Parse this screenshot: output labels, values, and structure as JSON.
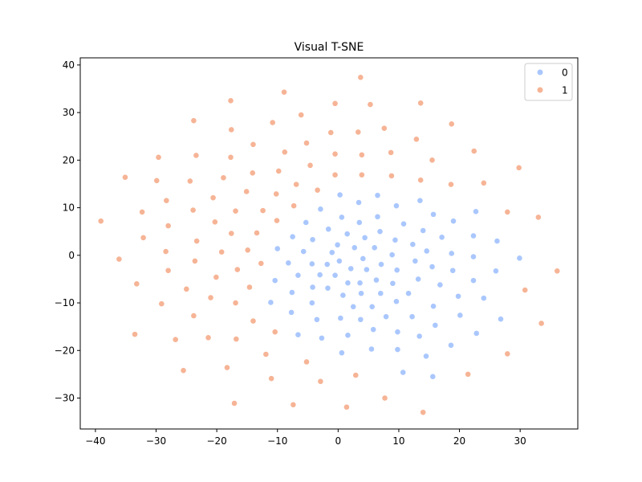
{
  "chart_data": {
    "type": "scatter",
    "title": "Visual T-SNE",
    "xlabel": "",
    "ylabel": "",
    "xlim": [
      -42.5,
      39.5
    ],
    "ylim": [
      -36.5,
      41.5
    ],
    "xticks": [
      -40,
      -30,
      -20,
      -10,
      0,
      10,
      20,
      30
    ],
    "yticks": [
      -30,
      -20,
      -10,
      0,
      10,
      20,
      30,
      40
    ],
    "grid": false,
    "legend_position": "top-right",
    "series": [
      {
        "name": "0",
        "color": "#aac7fd",
        "points": [
          [
            0.3,
            12.7
          ],
          [
            6.5,
            12.6
          ],
          [
            3.4,
            11.1
          ],
          [
            13.5,
            11.5
          ],
          [
            -2.9,
            9.7
          ],
          [
            9.6,
            10.4
          ],
          [
            15.7,
            8.6
          ],
          [
            0.6,
            8.0
          ],
          [
            6.5,
            8.1
          ],
          [
            19.0,
            7.2
          ],
          [
            -5.3,
            6.9
          ],
          [
            3.5,
            6.9
          ],
          [
            10.8,
            6.6
          ],
          [
            22.7,
            9.2
          ],
          [
            -1.6,
            5.5
          ],
          [
            6.9,
            5.0
          ],
          [
            14.0,
            5.2
          ],
          [
            -7.5,
            3.9
          ],
          [
            1.5,
            4.5
          ],
          [
            4.4,
            3.7
          ],
          [
            17.1,
            3.8
          ],
          [
            22.3,
            4.1
          ],
          [
            26.2,
            3.0
          ],
          [
            -10.0,
            1.4
          ],
          [
            -4.2,
            3.3
          ],
          [
            9.4,
            3.2
          ],
          [
            12.3,
            2.3
          ],
          [
            -5.7,
            0.8
          ],
          [
            -1.0,
            0.6
          ],
          [
            -0.1,
            2.2
          ],
          [
            2.7,
            1.6
          ],
          [
            6.0,
            1.6
          ],
          [
            14.6,
            0.9
          ],
          [
            18.7,
            0.4
          ],
          [
            -8.2,
            -1.6
          ],
          [
            -4.3,
            -1.8
          ],
          [
            -1.8,
            -1.9
          ],
          [
            0.2,
            -1.2
          ],
          [
            4.1,
            -0.7
          ],
          [
            8.9,
            0.1
          ],
          [
            12.7,
            -1.2
          ],
          [
            22.3,
            -0.3
          ],
          [
            29.9,
            -0.6
          ],
          [
            -6.6,
            -4.2
          ],
          [
            -3.0,
            -4.1
          ],
          [
            -0.5,
            -4.2
          ],
          [
            2.1,
            -2.8
          ],
          [
            4.7,
            -3.0
          ],
          [
            7.1,
            -1.9
          ],
          [
            9.7,
            -3.1
          ],
          [
            15.5,
            -2.4
          ],
          [
            18.9,
            -3.2
          ],
          [
            26.0,
            -3.3
          ],
          [
            -10.4,
            -5.3
          ],
          [
            -4.2,
            -6.7
          ],
          [
            -1.7,
            -6.9
          ],
          [
            1.6,
            -5.8
          ],
          [
            3.6,
            -5.8
          ],
          [
            6.3,
            -5.2
          ],
          [
            9.0,
            -5.9
          ],
          [
            13.2,
            -5.0
          ],
          [
            16.8,
            -6.2
          ],
          [
            22.3,
            -5.3
          ],
          [
            -7.6,
            -7.8
          ],
          [
            0.8,
            -8.4
          ],
          [
            3.8,
            -8.0
          ],
          [
            7.0,
            -8.0
          ],
          [
            11.6,
            -8.0
          ],
          [
            19.8,
            -8.6
          ],
          [
            24.0,
            -9.0
          ],
          [
            -11.1,
            -9.9
          ],
          [
            -4.3,
            -10.0
          ],
          [
            2.5,
            -10.8
          ],
          [
            5.6,
            -10.8
          ],
          [
            9.6,
            -9.7
          ],
          [
            15.7,
            -10.7
          ],
          [
            -7.7,
            -12.0
          ],
          [
            -3.5,
            -13.5
          ],
          [
            0.4,
            -13.2
          ],
          [
            3.7,
            -13.5
          ],
          [
            7.9,
            -12.9
          ],
          [
            12.2,
            -12.9
          ],
          [
            20.1,
            -12.6
          ],
          [
            26.8,
            -13.4
          ],
          [
            -6.6,
            -16.7
          ],
          [
            -2.7,
            -17.4
          ],
          [
            1.6,
            -16.8
          ],
          [
            5.8,
            -15.6
          ],
          [
            9.8,
            -16.1
          ],
          [
            13.4,
            -17.0
          ],
          [
            16.0,
            -14.7
          ],
          [
            22.8,
            -16.4
          ],
          [
            0.6,
            -20.5
          ],
          [
            5.5,
            -19.7
          ],
          [
            9.8,
            -19.8
          ],
          [
            14.5,
            -21.2
          ],
          [
            18.6,
            -18.9
          ],
          [
            10.7,
            -24.6
          ],
          [
            15.6,
            -25.5
          ]
        ]
      },
      {
        "name": "1",
        "color": "#f6b496",
        "points": [
          [
            3.7,
            37.4
          ],
          [
            -8.9,
            34.3
          ],
          [
            -17.7,
            32.5
          ],
          [
            -0.5,
            31.9
          ],
          [
            5.3,
            31.7
          ],
          [
            13.6,
            32.0
          ],
          [
            -6.1,
            29.5
          ],
          [
            -23.8,
            28.3
          ],
          [
            -10.8,
            27.9
          ],
          [
            18.7,
            27.6
          ],
          [
            -17.6,
            26.4
          ],
          [
            -1.2,
            25.8
          ],
          [
            3.3,
            25.9
          ],
          [
            7.6,
            26.7
          ],
          [
            12.9,
            24.4
          ],
          [
            -5.2,
            23.6
          ],
          [
            -14.0,
            23.3
          ],
          [
            22.4,
            21.9
          ],
          [
            -29.6,
            20.6
          ],
          [
            -23.4,
            21.0
          ],
          [
            -17.7,
            20.6
          ],
          [
            -8.8,
            21.7
          ],
          [
            -0.5,
            21.3
          ],
          [
            3.9,
            21.1
          ],
          [
            8.7,
            21.6
          ],
          [
            15.5,
            20.0
          ],
          [
            29.8,
            18.4
          ],
          [
            -4.6,
            18.9
          ],
          [
            -35.1,
            16.4
          ],
          [
            -29.9,
            15.7
          ],
          [
            -24.4,
            15.6
          ],
          [
            -18.9,
            16.3
          ],
          [
            -14.1,
            17.3
          ],
          [
            -9.8,
            17.7
          ],
          [
            -0.5,
            16.9
          ],
          [
            3.9,
            16.9
          ],
          [
            8.8,
            16.7
          ],
          [
            13.6,
            15.8
          ],
          [
            18.6,
            14.9
          ],
          [
            24.0,
            15.2
          ],
          [
            -6.9,
            14.9
          ],
          [
            -3.4,
            13.7
          ],
          [
            -15.1,
            13.4
          ],
          [
            -10.2,
            12.9
          ],
          [
            -20.6,
            12.1
          ],
          [
            -28.3,
            11.5
          ],
          [
            -32.3,
            9.1
          ],
          [
            -23.9,
            9.5
          ],
          [
            -16.9,
            9.3
          ],
          [
            -12.4,
            9.4
          ],
          [
            -7.3,
            10.4
          ],
          [
            27.9,
            9.1
          ],
          [
            -39.1,
            7.2
          ],
          [
            -28.0,
            6.2
          ],
          [
            -20.3,
            7.0
          ],
          [
            -10.1,
            7.3
          ],
          [
            33.0,
            8.0
          ],
          [
            -17.6,
            4.6
          ],
          [
            -13.4,
            4.7
          ],
          [
            -32.1,
            3.7
          ],
          [
            -23.3,
            3.0
          ],
          [
            -28.4,
            0.8
          ],
          [
            -19.2,
            0.7
          ],
          [
            -14.9,
            1.1
          ],
          [
            -36.1,
            -0.8
          ],
          [
            -23.6,
            -1.2
          ],
          [
            -12.7,
            -1.7
          ],
          [
            -28.0,
            -3.2
          ],
          [
            -16.6,
            -3.0
          ],
          [
            36.1,
            -3.3
          ],
          [
            -33.2,
            -6.0
          ],
          [
            -20.1,
            -4.6
          ],
          [
            -25.0,
            -7.1
          ],
          [
            -14.6,
            -6.7
          ],
          [
            -21.0,
            -8.9
          ],
          [
            30.8,
            -7.3
          ],
          [
            -29.1,
            -10.2
          ],
          [
            -16.9,
            -10.0
          ],
          [
            -23.8,
            -12.7
          ],
          [
            -14.0,
            -13.8
          ],
          [
            33.5,
            -14.3
          ],
          [
            -33.5,
            -16.6
          ],
          [
            -10.4,
            -16.1
          ],
          [
            -21.4,
            -17.3
          ],
          [
            -26.8,
            -17.7
          ],
          [
            -16.8,
            -17.6
          ],
          [
            -11.9,
            -20.8
          ],
          [
            27.9,
            -20.7
          ],
          [
            -18.3,
            -23.6
          ],
          [
            -25.5,
            -24.2
          ],
          [
            -5.2,
            -22.4
          ],
          [
            -11.0,
            -25.9
          ],
          [
            -2.9,
            -26.5
          ],
          [
            2.9,
            -25.2
          ],
          [
            21.4,
            -25.0
          ],
          [
            7.7,
            -30.0
          ],
          [
            -17.1,
            -31.1
          ],
          [
            -7.4,
            -31.4
          ],
          [
            1.4,
            -31.9
          ],
          [
            14.0,
            -33.0
          ]
        ]
      }
    ]
  }
}
